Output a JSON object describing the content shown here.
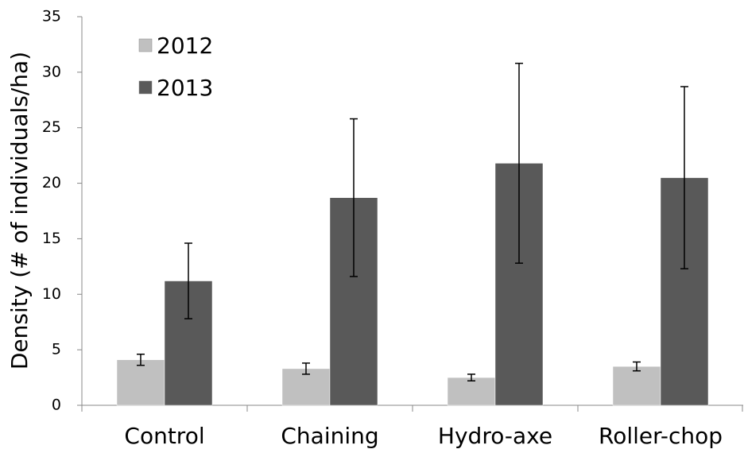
{
  "chart_data": {
    "type": "bar",
    "y_label": "Density  (# of individuals/ha)",
    "categories": [
      "Control",
      "Chaining",
      "Hydro-axe",
      "Roller-chop"
    ],
    "series": [
      {
        "name": "2012",
        "color": "#c0c0c0",
        "values": [
          4.1,
          3.3,
          2.5,
          3.5
        ],
        "errors": [
          0.5,
          0.5,
          0.3,
          0.4
        ]
      },
      {
        "name": "2013",
        "color": "#595959",
        "values": [
          11.2,
          18.7,
          21.8,
          20.5
        ],
        "errors": [
          3.4,
          7.1,
          9.0,
          8.2
        ]
      }
    ],
    "ylim": [
      0,
      35
    ],
    "yticks": [
      0,
      5,
      10,
      15,
      20,
      25,
      30,
      35
    ],
    "legend": "upper-left",
    "grid": false
  }
}
